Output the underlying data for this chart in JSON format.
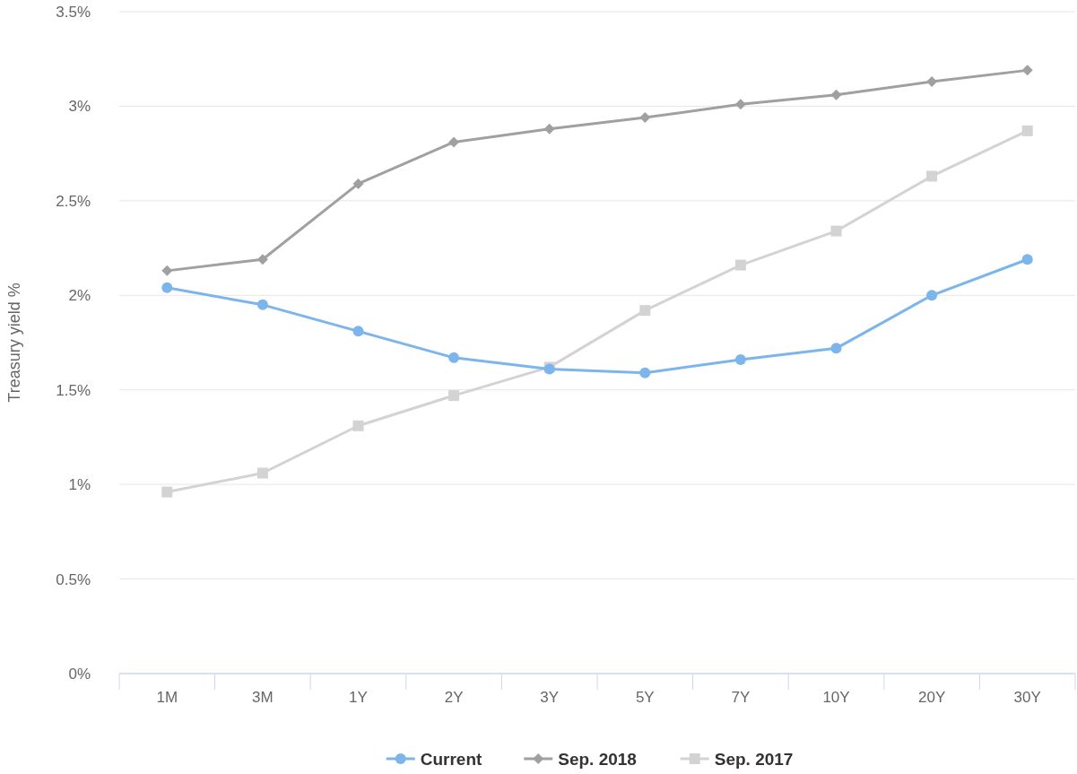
{
  "chart_data": {
    "type": "line",
    "ylabel": "Treasury yield %",
    "categories": [
      "1M",
      "3M",
      "1Y",
      "2Y",
      "3Y",
      "5Y",
      "7Y",
      "10Y",
      "20Y",
      "30Y"
    ],
    "series": [
      {
        "name": "Current",
        "color": "#7cb5ec",
        "marker": "circle",
        "values": [
          2.04,
          1.95,
          1.81,
          1.67,
          1.61,
          1.59,
          1.66,
          1.72,
          2.0,
          2.19
        ]
      },
      {
        "name": "Sep. 2018",
        "color": "#a0a0a0",
        "marker": "diamond",
        "values": [
          2.13,
          2.19,
          2.59,
          2.81,
          2.88,
          2.94,
          3.01,
          3.06,
          3.13,
          3.19
        ]
      },
      {
        "name": "Sep. 2017",
        "color": "#d3d3d3",
        "marker": "square",
        "values": [
          0.96,
          1.06,
          1.31,
          1.47,
          1.62,
          1.92,
          2.16,
          2.34,
          2.63,
          2.87
        ]
      }
    ],
    "ylim": [
      0,
      3.5
    ],
    "yticks": [
      {
        "value": 0,
        "label": "0%"
      },
      {
        "value": 0.5,
        "label": "0.5%"
      },
      {
        "value": 1,
        "label": "1%"
      },
      {
        "value": 1.5,
        "label": "1.5%"
      },
      {
        "value": 2,
        "label": "2%"
      },
      {
        "value": 2.5,
        "label": "2.5%"
      },
      {
        "value": 3,
        "label": "3%"
      },
      {
        "value": 3.5,
        "label": "3.5%"
      }
    ],
    "grid": "y",
    "legend": "bottom",
    "line_style": "solid"
  }
}
